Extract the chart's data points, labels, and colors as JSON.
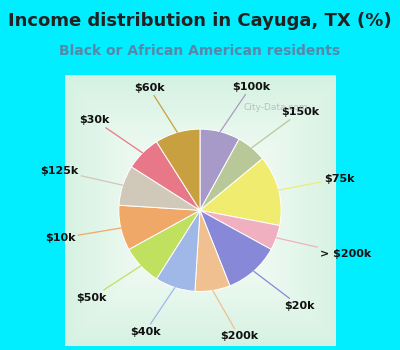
{
  "title": "Income distribution in Cayuga, TX (%)",
  "subtitle": "Black or African American residents",
  "watermark": "City-Data.com",
  "cyan_color": "#00eeff",
  "chart_bg": "#d8f0e0",
  "slices": [
    {
      "label": "$100k",
      "value": 8,
      "color": "#a89ac8"
    },
    {
      "label": "$150k",
      "value": 6,
      "color": "#b8c898"
    },
    {
      "label": "$75k",
      "value": 14,
      "color": "#f0ec70"
    },
    {
      "label": "> $200k",
      "value": 5,
      "color": "#f0b0c0"
    },
    {
      "label": "$20k",
      "value": 11,
      "color": "#8888d8"
    },
    {
      "label": "$200k",
      "value": 7,
      "color": "#f0c090"
    },
    {
      "label": "$40k",
      "value": 8,
      "color": "#a0b8e8"
    },
    {
      "label": "$50k",
      "value": 8,
      "color": "#c0e060"
    },
    {
      "label": "$10k",
      "value": 9,
      "color": "#f0a868"
    },
    {
      "label": "$125k",
      "value": 8,
      "color": "#d0c8b8"
    },
    {
      "label": "$30k",
      "value": 7,
      "color": "#e87888"
    },
    {
      "label": "$60k",
      "value": 9,
      "color": "#c8a040"
    }
  ],
  "title_fontsize": 13,
  "subtitle_fontsize": 10,
  "label_fontsize": 8,
  "title_color": "#222222",
  "subtitle_color": "#5588aa",
  "label_color": "#111111"
}
